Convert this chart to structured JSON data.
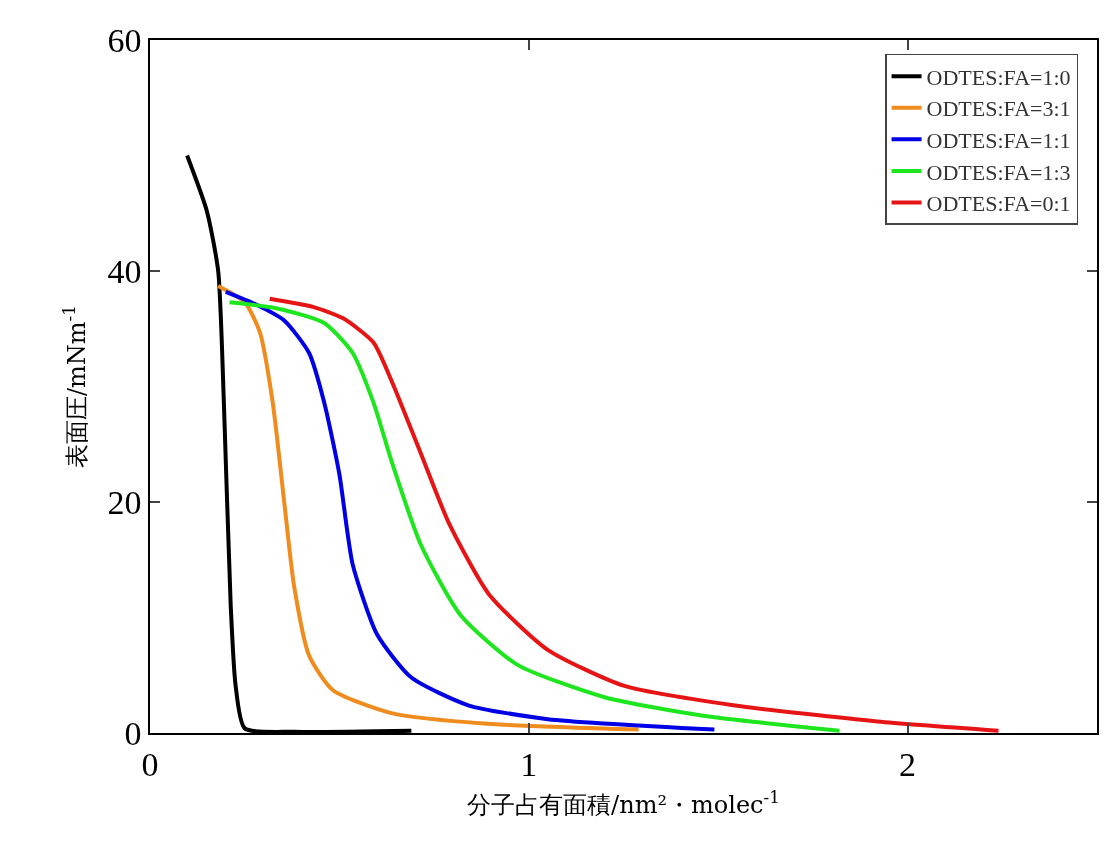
{
  "chart_data": {
    "type": "line",
    "xlabel": "分子占有面積/nm²・molec$^{-1}$",
    "ylabel": "表面圧/mNm$^{-1}$",
    "xlim": [
      0,
      2.5
    ],
    "xticks": [
      0,
      1,
      2
    ],
    "ylim": [
      0,
      60
    ],
    "yticks": [
      0,
      20,
      40,
      60
    ],
    "grid": false,
    "legend": "top right",
    "marker": "none",
    "line_style": "solid",
    "series": [
      {
        "name": "ODTES:FA=1:0",
        "color": "#000000",
        "x": [
          0.098,
          0.15,
          0.18,
          0.195,
          0.213,
          0.226,
          0.25,
          0.38,
          0.69
        ],
        "values": [
          50,
          45.2,
          40,
          28.6,
          11.1,
          4.1,
          0.4,
          0.1,
          0.2
        ]
      },
      {
        "name": "ODTES:FA=3:1",
        "color": "#f08c1e",
        "x": [
          0.18,
          0.25,
          0.29,
          0.324,
          0.355,
          0.38,
          0.42,
          0.483,
          0.64,
          0.89,
          1.29
        ],
        "values": [
          38.7,
          37.3,
          34.7,
          28.6,
          19.8,
          12.8,
          6.7,
          3.7,
          1.7,
          0.8,
          0.3
        ]
      },
      {
        "name": "ODTES:FA=1:1",
        "color": "#0000e6",
        "x": [
          0.2,
          0.28,
          0.355,
          0.42,
          0.46,
          0.5,
          0.535,
          0.6,
          0.69,
          0.84,
          1.05,
          1.49
        ],
        "values": [
          38.2,
          37.1,
          35.7,
          32.9,
          28.6,
          22.4,
          14.6,
          8.5,
          4.8,
          2.4,
          1.2,
          0.3
        ]
      },
      {
        "name": "ODTES:FA=1:3",
        "color": "#1ee61e",
        "x": [
          0.21,
          0.33,
          0.46,
          0.535,
          0.59,
          0.64,
          0.715,
          0.82,
          0.97,
          1.2,
          1.46,
          1.82
        ],
        "values": [
          37.3,
          36.8,
          35.5,
          32.9,
          28.6,
          23.3,
          16.3,
          10.2,
          5.9,
          3.1,
          1.5,
          0.2
        ]
      },
      {
        "name": "ODTES:FA=0:1",
        "color": "#e61414",
        "x": [
          0.316,
          0.43,
          0.51,
          0.59,
          0.64,
          0.715,
          0.79,
          0.895,
          1.05,
          1.25,
          1.54,
          1.92,
          2.24
        ],
        "values": [
          37.6,
          36.9,
          35.9,
          33.8,
          30.3,
          24.2,
          18.1,
          12.0,
          7.2,
          4.1,
          2.4,
          1.0,
          0.2
        ]
      }
    ]
  }
}
